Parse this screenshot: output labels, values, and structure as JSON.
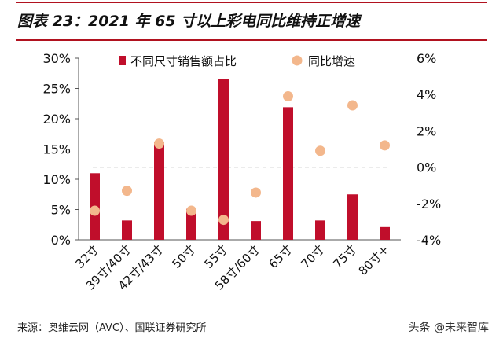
{
  "header": {
    "title": "图表 23：2021 年 65 寸以上彩电同比维持正增速"
  },
  "footer": {
    "source": "来源：奥维云网（AVC）、国联证券研究所",
    "watermark": "头条 @未来智库"
  },
  "chart_data": {
    "type": "bar",
    "title": "图表 23：2021 年 65 寸以上彩电同比维持正增速",
    "categories": [
      "32寸",
      "39寸/40寸",
      "42寸/43寸",
      "50寸",
      "55寸",
      "58寸/60寸",
      "65寸",
      "70寸",
      "75寸",
      "80寸+"
    ],
    "series": [
      {
        "name": "不同尺寸销售额占比",
        "type": "bar",
        "axis": "left",
        "color": "#c00e2b",
        "values": [
          11.0,
          3.2,
          16.2,
          5.1,
          26.5,
          3.1,
          21.9,
          3.2,
          7.5,
          2.1
        ]
      },
      {
        "name": "同比增速",
        "type": "scatter",
        "axis": "right",
        "color": "#f3b78c",
        "values": [
          -2.4,
          -1.3,
          1.3,
          -2.4,
          -2.9,
          -1.4,
          3.9,
          0.9,
          3.4,
          1.2
        ]
      }
    ],
    "y_left": {
      "min": 0,
      "max": 30,
      "ticks": [
        0,
        5,
        10,
        15,
        20,
        25,
        30
      ],
      "tick_labels": [
        "0%",
        "5%",
        "10%",
        "15%",
        "20%",
        "25%",
        "30%"
      ]
    },
    "y_right": {
      "min": -4,
      "max": 6,
      "ticks": [
        -4,
        -2,
        0,
        2,
        4,
        6
      ],
      "tick_labels": [
        "-4%",
        "-2%",
        "0%",
        "2%",
        "4%",
        "6%"
      ]
    },
    "reference_line": {
      "axis": "right",
      "value": 0,
      "style": "dashed",
      "color": "#b0b0b0"
    },
    "legend": {
      "position": "top"
    },
    "grid": false
  }
}
